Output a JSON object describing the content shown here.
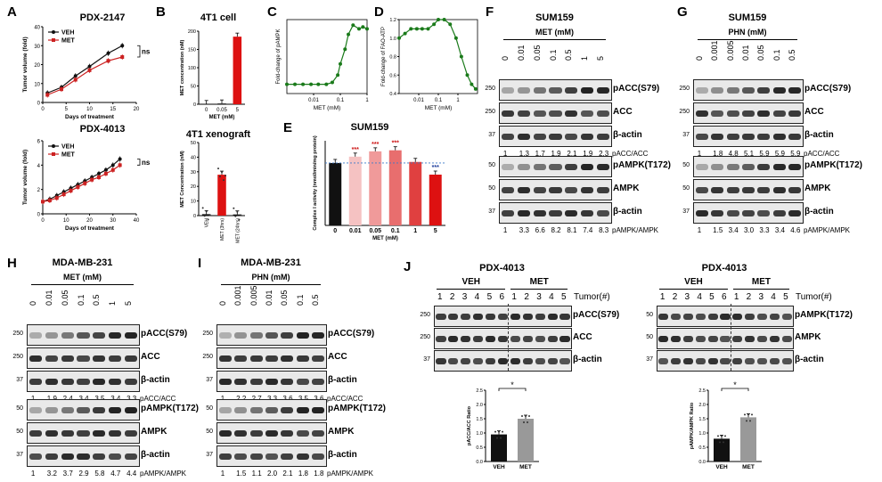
{
  "panels": {
    "A": {
      "label": "A",
      "top": {
        "title": "PDX-2147",
        "ylabel": "Tumor volume (fold)",
        "xlabel": "Days of treatment",
        "legend": [
          "VEH",
          "MET"
        ],
        "sig": "ns"
      },
      "bottom": {
        "title": "PDX-4013",
        "ylabel": "Tumor volume (fold)",
        "xlabel": "Days of treatment",
        "legend": [
          "VEH",
          "MET"
        ],
        "sig": "ns"
      }
    },
    "B": {
      "label": "B",
      "top": {
        "title": "4T1 cell",
        "ylabel": "MET concentration (nM)",
        "xlabel": "MET (mM)",
        "sig": "*"
      },
      "bottom": {
        "title": "4T1 xenograft",
        "ylabel": "MET Concentration (nM)",
        "sig": "*"
      }
    },
    "C": {
      "label": "C",
      "ylabel": "Fold-change of pAMPK",
      "xlabel": "MET (mM)"
    },
    "D": {
      "label": "D",
      "ylabel": "Fold-change of FAO-ATP",
      "xlabel": "MET (mM)"
    },
    "E": {
      "label": "E",
      "title": "SUM159",
      "ylabel": "Complex I activity (nmol/min/mg protein)",
      "xlabel": "MET (mM)",
      "sig_labels": [
        "***",
        "***",
        "***",
        "***"
      ]
    },
    "F": {
      "label": "F",
      "title": "SUM159",
      "treatment": "MET (mM)",
      "doses": [
        "0",
        "0.01",
        "0.05",
        "0.1",
        "0.5",
        "1",
        "5"
      ],
      "top_rows": [
        "pACC(S79)",
        "ACC",
        "β-actin"
      ],
      "top_mw": [
        "250",
        "250",
        "37"
      ],
      "top_quant": [
        "1",
        "1.3",
        "1.7",
        "1.9",
        "2.1",
        "1.9",
        "2.3"
      ],
      "top_quant_label": "pACC/ACC",
      "bottom_rows": [
        "pAMPK(T172)",
        "AMPK",
        "β-actin"
      ],
      "bottom_mw": [
        "50",
        "50",
        "37"
      ],
      "bottom_quant": [
        "1",
        "3.3",
        "6.6",
        "8.2",
        "8.1",
        "7.4",
        "8.3"
      ],
      "bottom_quant_label": "pAMPK/AMPK"
    },
    "G": {
      "label": "G",
      "title": "SUM159",
      "treatment": "PHN (mM)",
      "doses": [
        "0",
        "0.001",
        "0.005",
        "0.01",
        "0.05",
        "0.1",
        "0.5"
      ],
      "top_rows": [
        "pACC(S79)",
        "ACC",
        "β-actin"
      ],
      "top_mw": [
        "250",
        "250",
        "37"
      ],
      "top_quant": [
        "1",
        "1.8",
        "4.8",
        "5.1",
        "5.9",
        "5.9",
        "5.9"
      ],
      "top_quant_label": "pACC/ACC",
      "bottom_rows": [
        "pAMPK(T172)",
        "AMPK",
        "β-actin"
      ],
      "bottom_mw": [
        "50",
        "50",
        "37"
      ],
      "bottom_quant": [
        "1",
        "1.5",
        "3.4",
        "3.0",
        "3.3",
        "3.4",
        "4.6"
      ],
      "bottom_quant_label": "pAMPK/AMPK"
    },
    "H": {
      "label": "H",
      "title": "MDA-MB-231",
      "treatment": "MET (mM)",
      "doses": [
        "0",
        "0.01",
        "0.05",
        "0.1",
        "0.5",
        "1",
        "5"
      ],
      "top_rows": [
        "pACC(S79)",
        "ACC",
        "β-actin"
      ],
      "top_mw": [
        "250",
        "250",
        "37"
      ],
      "top_quant": [
        "1",
        "1.9",
        "2.4",
        "3.4",
        "3.5",
        "3.4",
        "3.3"
      ],
      "top_quant_label": "pACC/ACC",
      "bottom_rows": [
        "pAMPK(T172)",
        "AMPK",
        "β-actin"
      ],
      "bottom_mw": [
        "50",
        "50",
        "37"
      ],
      "bottom_quant": [
        "1",
        "3.2",
        "3.7",
        "2.9",
        "5.8",
        "4.7",
        "4.4"
      ],
      "bottom_quant_label": "pAMPK/AMPK"
    },
    "I": {
      "label": "I",
      "title": "MDA-MB-231",
      "treatment": "PHN (mM)",
      "doses": [
        "0",
        "0.001",
        "0.005",
        "0.01",
        "0.05",
        "0.1",
        "0.5"
      ],
      "top_rows": [
        "pACC(S79)",
        "ACC",
        "β-actin"
      ],
      "top_mw": [
        "250",
        "250",
        "37"
      ],
      "top_quant": [
        "1",
        "2.2",
        "2.7",
        "3.3",
        "3.6",
        "3.5",
        "3.6"
      ],
      "top_quant_label": "pACC/ACC",
      "bottom_rows": [
        "pAMPK(T172)",
        "AMPK",
        "β-actin"
      ],
      "bottom_mw": [
        "50",
        "50",
        "37"
      ],
      "bottom_quant": [
        "1",
        "1.5",
        "1.1",
        "2.0",
        "2.1",
        "1.8",
        "1.8"
      ],
      "bottom_quant_label": "pAMPK/AMPK"
    },
    "J": {
      "label": "J",
      "left": {
        "title": "PDX-4013",
        "groups": [
          "VEH",
          "MET"
        ],
        "tumor_label": "Tumor(#)",
        "veh_ids": [
          "1",
          "2",
          "3",
          "4",
          "5",
          "6"
        ],
        "met_ids": [
          "1",
          "2",
          "3",
          "4",
          "5"
        ],
        "rows": [
          "pACC(S79)",
          "ACC",
          "β-actin"
        ],
        "mw": [
          "250",
          "250",
          "37"
        ],
        "bar_ylabel": "pACC/ACC Ratio",
        "sig": "*"
      },
      "right": {
        "title": "PDX-4013",
        "groups": [
          "VEH",
          "MET"
        ],
        "tumor_label": "Tumor(#)",
        "veh_ids": [
          "1",
          "2",
          "3",
          "4",
          "5",
          "6"
        ],
        "met_ids": [
          "1",
          "2",
          "3",
          "4",
          "5"
        ],
        "rows": [
          "pAMPK(T172)",
          "AMPK",
          "β-actin"
        ],
        "mw": [
          "50",
          "50",
          "37"
        ],
        "bar_ylabel": "pAMPK/AMPK Ratio",
        "sig": "*"
      }
    }
  },
  "chart_data": [
    {
      "id": "A-top",
      "type": "line",
      "title": "PDX-2147",
      "xlabel": "Days of treatment",
      "ylabel": "Tumor volume (fold)",
      "xlim": [
        0,
        20
      ],
      "ylim": [
        0,
        40
      ],
      "xticks": [
        "0",
        "5",
        "10",
        "15",
        "20"
      ],
      "yticks": [
        "0",
        "10",
        "20",
        "30",
        "40"
      ],
      "series": [
        {
          "name": "VEH",
          "color": "#111111",
          "x": [
            1,
            4,
            7,
            10,
            14,
            17
          ],
          "y": [
            5,
            8,
            14,
            19,
            26,
            30
          ]
        },
        {
          "name": "MET",
          "color": "#cc2222",
          "x": [
            1,
            4,
            7,
            10,
            14,
            17
          ],
          "y": [
            4,
            7,
            12,
            17,
            22,
            24
          ]
        }
      ]
    },
    {
      "id": "A-bottom",
      "type": "line",
      "title": "PDX-4013",
      "xlabel": "Days of treatment",
      "ylabel": "Tumor volume (fold)",
      "xlim": [
        0,
        40
      ],
      "ylim": [
        0,
        6
      ],
      "xticks": [
        "0",
        "10",
        "20",
        "30",
        "40"
      ],
      "yticks": [
        "0",
        "2",
        "4",
        "6"
      ],
      "series": [
        {
          "name": "VEH",
          "color": "#111111",
          "x": [
            0,
            3,
            6,
            9,
            12,
            15,
            18,
            21,
            24,
            27,
            30,
            33
          ],
          "y": [
            1.0,
            1.2,
            1.5,
            1.8,
            2.1,
            2.4,
            2.7,
            3.0,
            3.3,
            3.6,
            4.0,
            4.5
          ]
        },
        {
          "name": "MET",
          "color": "#cc2222",
          "x": [
            0,
            3,
            6,
            9,
            12,
            15,
            18,
            21,
            24,
            27,
            30,
            33
          ],
          "y": [
            1.0,
            1.1,
            1.3,
            1.6,
            1.9,
            2.2,
            2.5,
            2.8,
            3.0,
            3.3,
            3.6,
            4.0
          ]
        }
      ]
    },
    {
      "id": "B-top",
      "type": "bar",
      "title": "4T1 cell",
      "xlabel": "MET (mM)",
      "ylabel": "MET concentration (nM)",
      "categories": [
        "0",
        "0.05",
        "5"
      ],
      "values": [
        0.5,
        2,
        185
      ],
      "ylim": [
        0,
        200
      ],
      "yticks": [
        "0",
        "50",
        "100",
        "150",
        "200"
      ],
      "colors": [
        "#111111",
        "#111111",
        "#dd1111"
      ]
    },
    {
      "id": "B-bottom",
      "type": "bar",
      "title": "4T1 xenograft",
      "ylabel": "MET Concentration (nM)",
      "categories": [
        "VEH",
        "MET (3hrs)",
        "MET (24hrs)"
      ],
      "values": [
        1,
        28,
        0.8
      ],
      "ylim": [
        0,
        50
      ],
      "yticks": [
        "0",
        "10",
        "20",
        "30",
        "40",
        "50"
      ],
      "colors": [
        "#111111",
        "#dd1111",
        "#111111"
      ]
    },
    {
      "id": "C",
      "type": "line",
      "xlabel": "MET (mM)",
      "ylabel": "Fold-change of pAMPK",
      "xscale": "log",
      "xlim": [
        0.001,
        1
      ],
      "ylim": [
        0,
        4
      ],
      "xticks": [
        "0.01",
        "0.1",
        "1"
      ],
      "series": [
        {
          "name": "pAMPK",
          "color": "#1a7a1a",
          "x": [
            0.001,
            0.002,
            0.004,
            0.008,
            0.015,
            0.03,
            0.05,
            0.08,
            0.1,
            0.15,
            0.2,
            0.3,
            0.5,
            0.7,
            1.0
          ],
          "y": [
            0.5,
            0.5,
            0.5,
            0.5,
            0.5,
            0.5,
            0.6,
            1.0,
            1.6,
            2.4,
            3.2,
            3.7,
            3.5,
            3.6,
            3.5
          ]
        }
      ]
    },
    {
      "id": "D",
      "type": "line",
      "xlabel": "MET (mM)",
      "ylabel": "Fold-change of FAO-ATP",
      "xscale": "log",
      "xlim": [
        0.001,
        10
      ],
      "ylim": [
        0.4,
        1.2
      ],
      "yticks": [
        "0.4",
        "0.6",
        "0.8",
        "1.0",
        "1.2"
      ],
      "xticks": [
        "0.01",
        "0.1",
        "1"
      ],
      "series": [
        {
          "name": "FAO-ATP",
          "color": "#1a7a1a",
          "x": [
            0.001,
            0.002,
            0.004,
            0.008,
            0.015,
            0.03,
            0.06,
            0.1,
            0.2,
            0.4,
            0.8,
            1.5,
            3,
            5,
            8
          ],
          "y": [
            1.0,
            1.05,
            1.1,
            1.1,
            1.1,
            1.1,
            1.15,
            1.2,
            1.2,
            1.15,
            1.0,
            0.8,
            0.6,
            0.5,
            0.45
          ]
        }
      ]
    },
    {
      "id": "E",
      "type": "bar",
      "title": "SUM159",
      "xlabel": "MET (mM)",
      "ylabel": "Complex I activity (nmol/min/mg protein)",
      "categories": [
        "0",
        "0.01",
        "0.05",
        "0.1",
        "1",
        "5"
      ],
      "values": [
        590,
        650,
        700,
        710,
        600,
        480
      ],
      "ylim": [
        0,
        800
      ],
      "colors": [
        "#111111",
        "#f5c2c2",
        "#f09a9a",
        "#e86e6e",
        "#e04040",
        "#dd1111"
      ]
    },
    {
      "id": "J-left-bar",
      "type": "bar",
      "ylabel": "pACC/ACC Ratio",
      "categories": [
        "VEH",
        "MET"
      ],
      "values": [
        0.95,
        1.5
      ],
      "ylim": [
        0,
        2.5
      ],
      "yticks": [
        "0.0",
        "0.5",
        "1.0",
        "1.5",
        "2.0",
        "2.5"
      ],
      "colors": [
        "#111111",
        "#999999"
      ]
    },
    {
      "id": "J-right-bar",
      "type": "bar",
      "ylabel": "pAMPK/AMPK Ratio",
      "categories": [
        "VEH",
        "MET"
      ],
      "values": [
        0.8,
        1.55
      ],
      "ylim": [
        0,
        2.5
      ],
      "yticks": [
        "0.0",
        "0.5",
        "1.0",
        "1.5",
        "2.0",
        "2.5"
      ],
      "colors": [
        "#111111",
        "#999999"
      ]
    }
  ]
}
